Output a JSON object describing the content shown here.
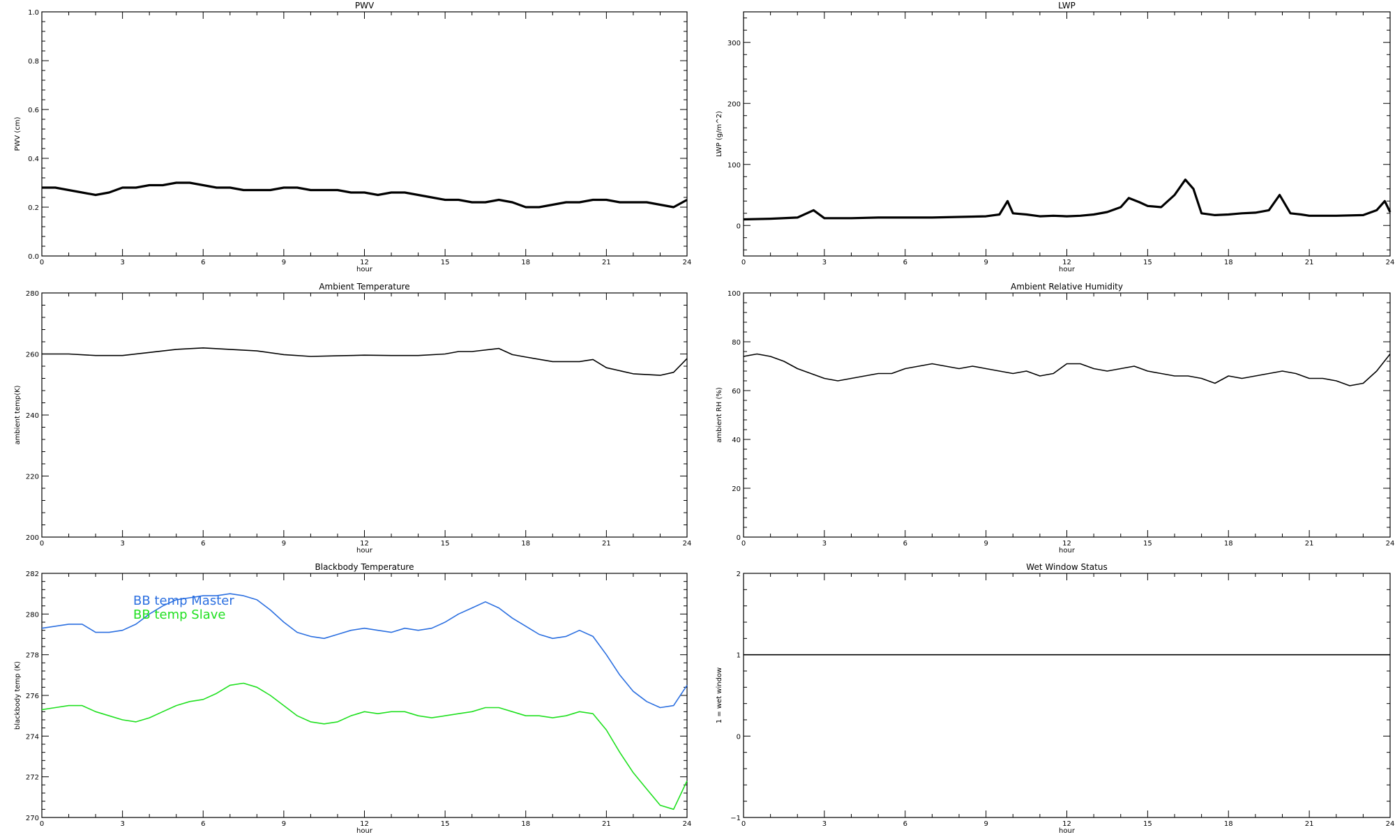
{
  "chart_data": [
    {
      "id": "pwv",
      "type": "line",
      "title": "PWV",
      "xlabel": "hour",
      "ylabel": "PWV (cm)",
      "xlim": [
        0,
        24
      ],
      "ylim": [
        0.0,
        1.0
      ],
      "xticks": [
        0,
        3,
        6,
        9,
        12,
        15,
        18,
        21,
        24
      ],
      "xtick_labels": [
        "0",
        "3",
        "6",
        "9",
        "12",
        "15",
        "18",
        "21",
        "24"
      ],
      "yticks": [
        0.0,
        0.2,
        0.4,
        0.6,
        0.8,
        1.0
      ],
      "ytick_labels": [
        "0.0",
        "0.2",
        "0.4",
        "0.6",
        "0.8",
        "1.0"
      ],
      "series": [
        {
          "color": "#000000",
          "x": [
            0,
            0.5,
            1,
            1.5,
            2,
            2.5,
            3,
            3.5,
            4,
            4.5,
            5,
            5.5,
            6,
            6.5,
            7,
            7.5,
            8,
            8.5,
            9,
            9.5,
            10,
            10.5,
            11,
            11.5,
            12,
            12.5,
            13,
            13.5,
            14,
            14.5,
            15,
            15.5,
            16,
            16.5,
            17,
            17.5,
            18,
            18.5,
            19,
            19.5,
            20,
            20.5,
            21,
            21.5,
            22,
            22.5,
            23,
            23.5,
            24
          ],
          "y": [
            0.28,
            0.28,
            0.27,
            0.26,
            0.25,
            0.26,
            0.28,
            0.28,
            0.29,
            0.29,
            0.3,
            0.3,
            0.29,
            0.28,
            0.28,
            0.27,
            0.27,
            0.27,
            0.28,
            0.28,
            0.27,
            0.27,
            0.27,
            0.26,
            0.26,
            0.25,
            0.26,
            0.26,
            0.25,
            0.24,
            0.23,
            0.23,
            0.22,
            0.22,
            0.23,
            0.22,
            0.2,
            0.2,
            0.21,
            0.22,
            0.22,
            0.23,
            0.23,
            0.22,
            0.22,
            0.22,
            0.21,
            0.2,
            0.23
          ]
        }
      ]
    },
    {
      "id": "lwp",
      "type": "line",
      "title": "LWP",
      "xlabel": "hour",
      "ylabel": "LWP (g/m^2)",
      "xlim": [
        0,
        24
      ],
      "ylim": [
        -50,
        350
      ],
      "xticks": [
        0,
        3,
        6,
        9,
        12,
        15,
        18,
        21,
        24
      ],
      "xtick_labels": [
        "0",
        "3",
        "6",
        "9",
        "12",
        "15",
        "18",
        "21",
        "24"
      ],
      "yticks": [
        0,
        100,
        200,
        300
      ],
      "ytick_labels": [
        "0",
        "100",
        "200",
        "300"
      ],
      "series": [
        {
          "color": "#000000",
          "x": [
            0,
            1,
            2,
            2.6,
            3,
            4,
            5,
            6,
            7,
            8,
            9,
            9.5,
            9.8,
            10,
            10.5,
            11,
            11.5,
            12,
            12.5,
            13,
            13.5,
            14,
            14.3,
            14.7,
            15,
            15.5,
            16,
            16.4,
            16.7,
            17,
            17.5,
            18,
            18.5,
            19,
            19.5,
            19.9,
            20.3,
            20.7,
            21,
            22,
            23,
            23.5,
            23.8,
            24
          ],
          "y": [
            10,
            11,
            13,
            25,
            12,
            12,
            13,
            13,
            13,
            14,
            15,
            18,
            40,
            20,
            18,
            15,
            16,
            15,
            16,
            18,
            22,
            30,
            45,
            38,
            32,
            30,
            50,
            75,
            60,
            20,
            17,
            18,
            20,
            21,
            25,
            50,
            20,
            18,
            16,
            16,
            17,
            25,
            40,
            22
          ]
        }
      ]
    },
    {
      "id": "ambient_temp",
      "type": "line",
      "title": "Ambient Temperature",
      "xlabel": "hour",
      "ylabel": "ambient temp(K)",
      "xlim": [
        0,
        24
      ],
      "ylim": [
        200,
        280
      ],
      "xticks": [
        0,
        3,
        6,
        9,
        12,
        15,
        18,
        21,
        24
      ],
      "xtick_labels": [
        "0",
        "3",
        "6",
        "9",
        "12",
        "15",
        "18",
        "21",
        "24"
      ],
      "yticks": [
        200,
        220,
        240,
        260,
        280
      ],
      "ytick_labels": [
        "200",
        "220",
        "240",
        "260",
        "280"
      ],
      "series": [
        {
          "color": "#000000",
          "x": [
            0,
            1,
            2,
            3,
            4,
            5,
            6,
            7,
            8,
            9,
            10,
            11,
            12,
            13,
            14,
            15,
            15.5,
            16,
            17,
            17.5,
            18,
            19,
            20,
            20.5,
            21,
            22,
            23,
            23.5,
            24
          ],
          "y": [
            260,
            260,
            259.5,
            259.5,
            260.5,
            261.5,
            262,
            261.5,
            261,
            259.8,
            259.2,
            259.4,
            259.6,
            259.5,
            259.5,
            260,
            260.8,
            260.8,
            261.8,
            259.8,
            259,
            257.5,
            257.5,
            258.2,
            255.5,
            253.5,
            253,
            254,
            258.5
          ]
        }
      ]
    },
    {
      "id": "ambient_rh",
      "type": "line",
      "title": "Ambient Relative Humidity",
      "xlabel": "hour",
      "ylabel": "ambient RH (%)",
      "xlim": [
        0,
        24
      ],
      "ylim": [
        0,
        100
      ],
      "xticks": [
        0,
        3,
        6,
        9,
        12,
        15,
        18,
        21,
        24
      ],
      "xtick_labels": [
        "0",
        "3",
        "6",
        "9",
        "12",
        "15",
        "18",
        "21",
        "24"
      ],
      "yticks": [
        0,
        20,
        40,
        60,
        80,
        100
      ],
      "ytick_labels": [
        "0",
        "20",
        "40",
        "60",
        "80",
        "100"
      ],
      "series": [
        {
          "color": "#000000",
          "x": [
            0,
            0.5,
            1,
            1.5,
            2,
            2.5,
            3,
            3.5,
            4,
            4.5,
            5,
            5.5,
            6,
            6.5,
            7,
            7.5,
            8,
            8.5,
            9,
            9.5,
            10,
            10.5,
            11,
            11.5,
            12,
            12.5,
            13,
            13.5,
            14,
            14.5,
            15,
            15.5,
            16,
            16.5,
            17,
            17.5,
            18,
            18.5,
            19,
            19.5,
            20,
            20.5,
            21,
            21.5,
            22,
            22.5,
            23,
            23.5,
            24
          ],
          "y": [
            74,
            75,
            74,
            72,
            69,
            67,
            65,
            64,
            65,
            66,
            67,
            67,
            69,
            70,
            71,
            70,
            69,
            70,
            69,
            68,
            67,
            68,
            66,
            67,
            71,
            71,
            69,
            68,
            69,
            70,
            68,
            67,
            66,
            66,
            65,
            63,
            66,
            65,
            66,
            67,
            68,
            67,
            65,
            65,
            64,
            62,
            63,
            68,
            75
          ]
        }
      ]
    },
    {
      "id": "blackbody_temp",
      "type": "line",
      "title": "Blackbody Temperature",
      "xlabel": "hour",
      "ylabel": "blackbody temp (K)",
      "xlim": [
        0,
        24
      ],
      "ylim": [
        270,
        282
      ],
      "xticks": [
        0,
        3,
        6,
        9,
        12,
        15,
        18,
        21,
        24
      ],
      "xtick_labels": [
        "0",
        "3",
        "6",
        "9",
        "12",
        "15",
        "18",
        "21",
        "24"
      ],
      "yticks": [
        270,
        272,
        274,
        276,
        278,
        280,
        282
      ],
      "ytick_labels": [
        "270",
        "272",
        "274",
        "276",
        "278",
        "280",
        "282"
      ],
      "legend": {
        "placement": "top-left"
      },
      "series": [
        {
          "name": "BB temp Master",
          "color": "#2b6fe0",
          "x": [
            0,
            0.5,
            1,
            1.5,
            2,
            2.5,
            3,
            3.5,
            4,
            4.5,
            5,
            5.5,
            6,
            6.5,
            7,
            7.5,
            8,
            8.5,
            9,
            9.5,
            10,
            10.5,
            11,
            11.5,
            12,
            12.5,
            13,
            13.5,
            14,
            14.5,
            15,
            15.5,
            16,
            16.5,
            17,
            17.5,
            18,
            18.5,
            19,
            19.5,
            20,
            20.5,
            21,
            21.5,
            22,
            22.5,
            23,
            23.5,
            24
          ],
          "y": [
            279.3,
            279.4,
            279.5,
            279.5,
            279.1,
            279.1,
            279.2,
            279.5,
            280,
            280.4,
            280.7,
            280.8,
            280.9,
            280.9,
            281,
            280.9,
            280.7,
            280.2,
            279.6,
            279.1,
            278.9,
            278.8,
            279,
            279.2,
            279.3,
            279.2,
            279.1,
            279.3,
            279.2,
            279.3,
            279.6,
            280,
            280.3,
            280.6,
            280.3,
            279.8,
            279.4,
            279,
            278.8,
            278.9,
            279.2,
            278.9,
            278,
            277,
            276.2,
            275.7,
            275.4,
            275.5,
            276.5
          ]
        },
        {
          "name": "BB temp Slave",
          "color": "#1fe01f",
          "x": [
            0,
            0.5,
            1,
            1.5,
            2,
            2.5,
            3,
            3.5,
            4,
            4.5,
            5,
            5.5,
            6,
            6.5,
            7,
            7.5,
            8,
            8.5,
            9,
            9.5,
            10,
            10.5,
            11,
            11.5,
            12,
            12.5,
            13,
            13.5,
            14,
            14.5,
            15,
            15.5,
            16,
            16.5,
            17,
            17.5,
            18,
            18.5,
            19,
            19.5,
            20,
            20.5,
            21,
            21.5,
            22,
            22.5,
            23,
            23.5,
            24
          ],
          "y": [
            275.3,
            275.4,
            275.5,
            275.5,
            275.2,
            275.0,
            274.8,
            274.7,
            274.9,
            275.2,
            275.5,
            275.7,
            275.8,
            276.1,
            276.5,
            276.6,
            276.4,
            276.0,
            275.5,
            275.0,
            274.7,
            274.6,
            274.7,
            275.0,
            275.2,
            275.1,
            275.2,
            275.2,
            275.0,
            274.9,
            275.0,
            275.1,
            275.2,
            275.4,
            275.4,
            275.2,
            275.0,
            275.0,
            274.9,
            275.0,
            275.2,
            275.1,
            274.3,
            273.2,
            272.2,
            271.4,
            270.6,
            270.4,
            271.8
          ]
        }
      ]
    },
    {
      "id": "wet_window",
      "type": "line",
      "title": "Wet Window Status",
      "xlabel": "hour",
      "ylabel": "1 = wet window",
      "xlim": [
        0,
        24
      ],
      "ylim": [
        -1,
        2
      ],
      "xticks": [
        0,
        3,
        6,
        9,
        12,
        15,
        18,
        21,
        24
      ],
      "xtick_labels": [
        "0",
        "3",
        "6",
        "9",
        "12",
        "15",
        "18",
        "21",
        "24"
      ],
      "yticks": [
        -1,
        0,
        1,
        2
      ],
      "ytick_labels": [
        "−1",
        "0",
        "1",
        "2"
      ],
      "series": [
        {
          "color": "#000000",
          "x": [
            0,
            24
          ],
          "y": [
            1,
            1
          ]
        }
      ]
    }
  ]
}
